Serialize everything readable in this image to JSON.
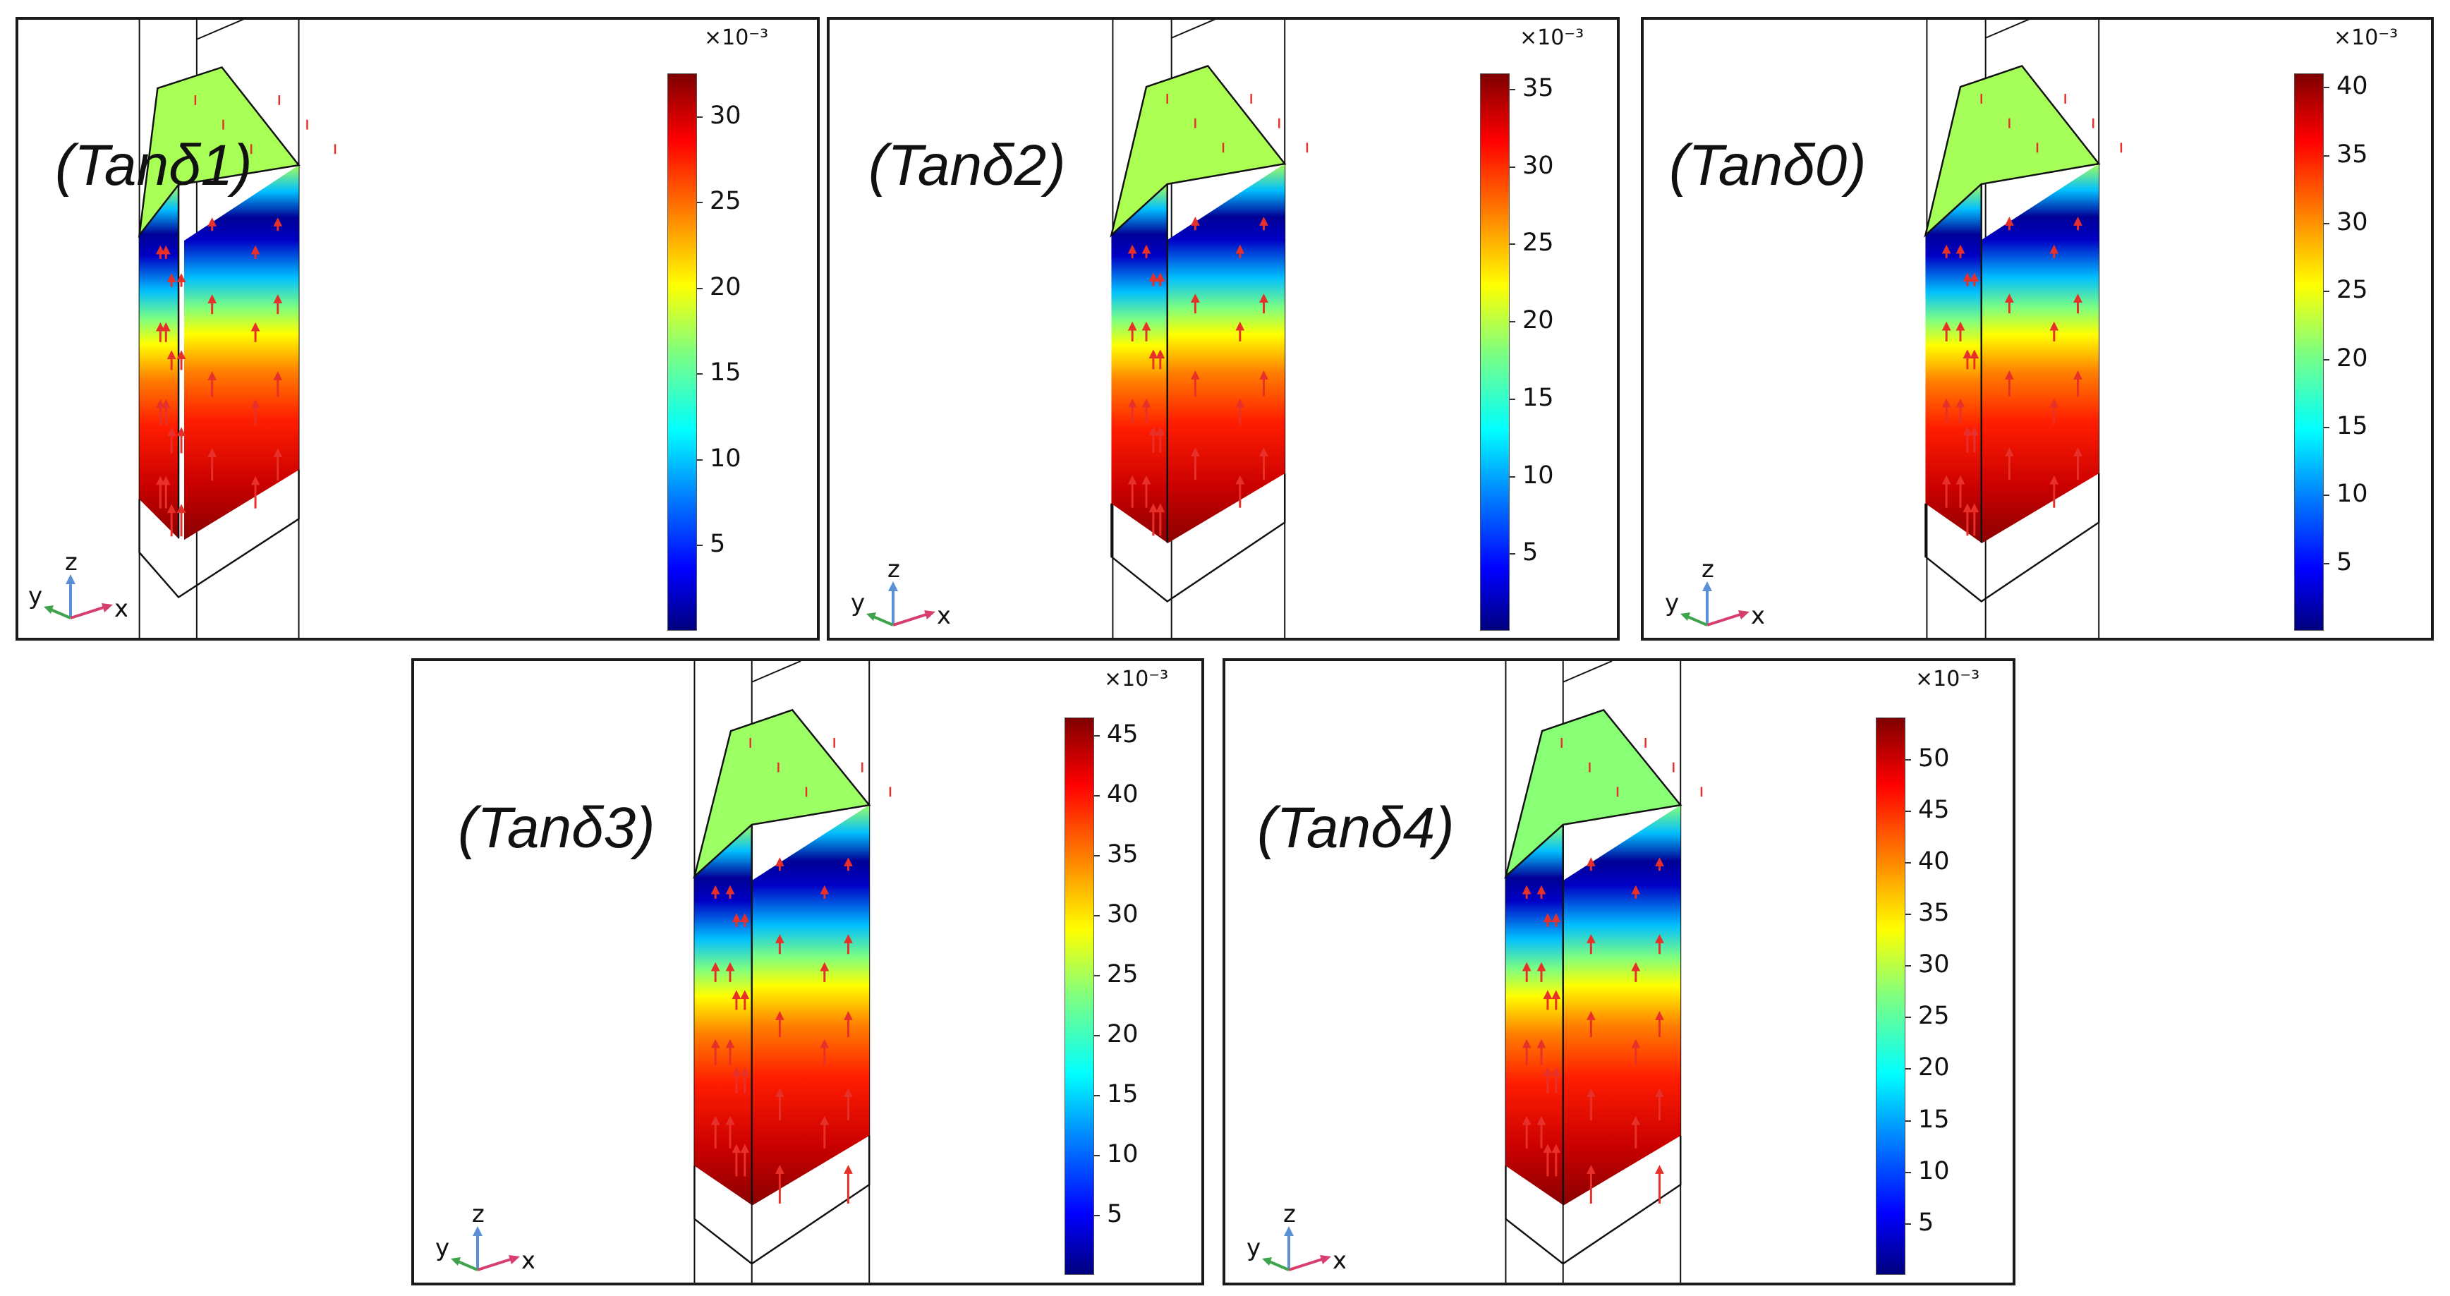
{
  "figure": {
    "colormap_colors": [
      "#00007f",
      "#0000ff",
      "#007fff",
      "#00ffff",
      "#7fff7f",
      "#ffff00",
      "#ff7f00",
      "#ff0000",
      "#7f0000"
    ],
    "arrow_color": "#e8302a",
    "panels": [
      {
        "title": "(Tanδ1)",
        "scale_label": "×10⁻³",
        "ticks": [
          "5",
          "10",
          "15",
          "20",
          "25",
          "30"
        ],
        "range": [
          0,
          32.5
        ],
        "top_value": 17.5,
        "triad": {
          "x": "x",
          "y": "y",
          "z": "z"
        }
      },
      {
        "title": "(Tanδ2)",
        "scale_label": "×10⁻³",
        "ticks": [
          "5",
          "10",
          "15",
          "20",
          "25",
          "30",
          "35"
        ],
        "range": [
          0,
          36
        ],
        "top_value": 19.5,
        "triad": {
          "x": "x",
          "y": "y",
          "z": "z"
        }
      },
      {
        "title": "(Tanδ0)",
        "scale_label": "×10⁻³",
        "ticks": [
          "5",
          "10",
          "15",
          "20",
          "25",
          "30",
          "35",
          "40"
        ],
        "range": [
          0,
          41
        ],
        "top_value": 22,
        "triad": {
          "x": "x",
          "y": "y",
          "z": "z"
        }
      },
      {
        "title": "(Tanδ3)",
        "scale_label": "×10⁻³",
        "ticks": [
          "5",
          "10",
          "15",
          "20",
          "25",
          "30",
          "35",
          "40",
          "45"
        ],
        "range": [
          0,
          46.5
        ],
        "top_value": 24.5,
        "triad": {
          "x": "x",
          "y": "y",
          "z": "z"
        }
      },
      {
        "title": "(Tanδ4)",
        "scale_label": "×10⁻³",
        "ticks": [
          "5",
          "10",
          "15",
          "20",
          "25",
          "30",
          "35",
          "40",
          "45",
          "50"
        ],
        "range": [
          0,
          54
        ],
        "top_value": 27.5,
        "triad": {
          "x": "x",
          "y": "y",
          "z": "z"
        }
      }
    ]
  }
}
